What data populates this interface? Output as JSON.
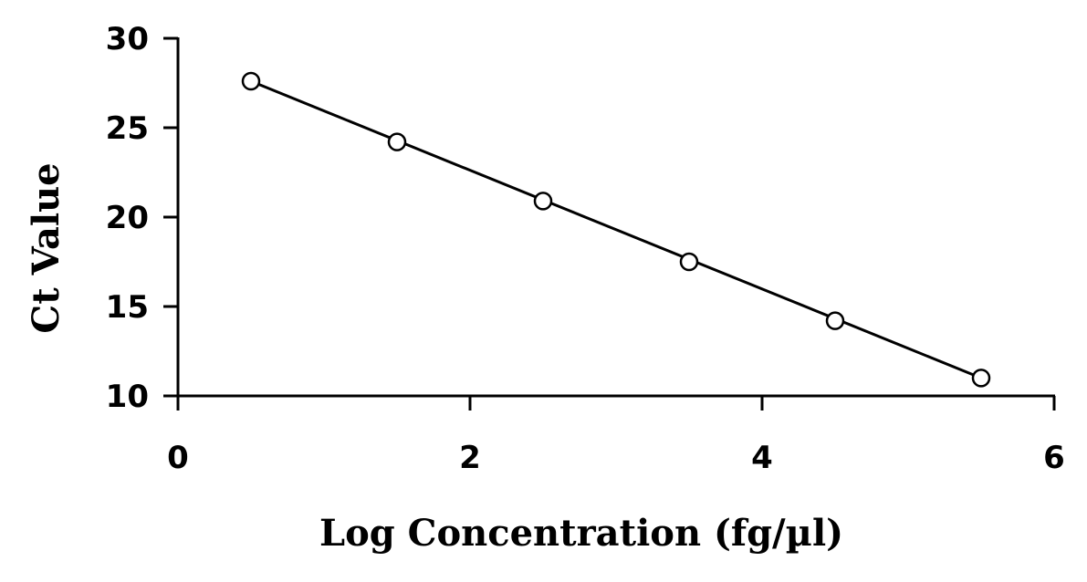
{
  "chart_data": {
    "type": "scatter",
    "title": "",
    "xlabel": "Log Concentration (fg/µl)",
    "ylabel": "Ct Value",
    "xlim": [
      0,
      6
    ],
    "ylim": [
      10,
      30
    ],
    "x_ticks": [
      0,
      2,
      4,
      6
    ],
    "y_ticks": [
      10,
      15,
      20,
      25,
      30
    ],
    "grid": false,
    "legend": "none",
    "series": [
      {
        "x": [
          0.5,
          1.5,
          2.5,
          3.5,
          4.5,
          5.5
        ],
        "y": [
          27.6,
          24.2,
          20.9,
          17.5,
          14.2,
          11.0
        ],
        "marker": "open-circle",
        "color": "#000000"
      }
    ],
    "trendline": {
      "type": "linear",
      "from": [
        0.5,
        27.6
      ],
      "to": [
        5.5,
        11.0
      ],
      "color": "#000000"
    }
  }
}
